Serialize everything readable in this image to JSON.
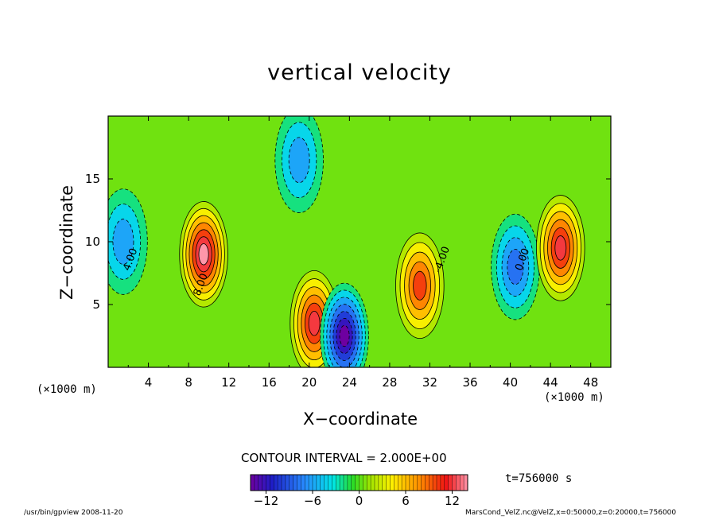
{
  "chart_data": {
    "type": "heatmap",
    "title": "vertical velocity",
    "xlabel": "X−coordinate",
    "ylabel": "Z−coordinate",
    "x_unit_left": "(×1000 m)",
    "x_unit_right": "(×1000 m)",
    "xlim": [
      0,
      50
    ],
    "ylim": [
      0,
      20
    ],
    "x_ticks": [
      4,
      8,
      12,
      16,
      20,
      24,
      28,
      32,
      36,
      40,
      44,
      48
    ],
    "y_ticks": [
      5,
      10,
      15
    ],
    "contour_interval_label": "CONTOUR INTERVAL = 2.000E+00",
    "contour_labels": [
      "4.00",
      "8.00",
      "-4.00",
      "0.00"
    ],
    "colorbar": {
      "range": [
        -14,
        14
      ],
      "ticks": [
        -12,
        -6,
        0,
        6,
        12
      ],
      "tick_labels": [
        "−12",
        "−6",
        "0",
        "6",
        "12"
      ]
    },
    "features": [
      {
        "x": 1.5,
        "z": 10,
        "value": -6
      },
      {
        "x": 9.5,
        "z": 9,
        "value": 13
      },
      {
        "x": 19,
        "z": 16.5,
        "value": -6
      },
      {
        "x": 20.5,
        "z": 3.5,
        "value": 12
      },
      {
        "x": 23.5,
        "z": 2.5,
        "value": -14
      },
      {
        "x": 31,
        "z": 6.5,
        "value": 10
      },
      {
        "x": 40.5,
        "z": 8,
        "value": -8
      },
      {
        "x": 45,
        "z": 9.5,
        "value": 12
      }
    ],
    "time_label": "t=756000 s"
  },
  "footer": {
    "left": "/usr/bin/gpview   2008-11-20",
    "right": "MarsCond_VelZ.nc@VelZ,x=0:50000,z=0:20000,t=756000"
  }
}
